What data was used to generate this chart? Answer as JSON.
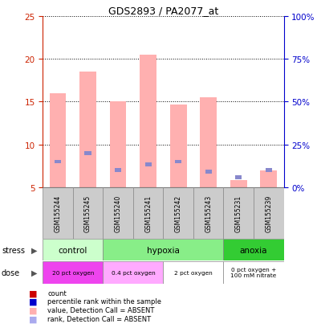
{
  "title": "GDS2893 / PA2077_at",
  "samples": [
    "GSM155244",
    "GSM155245",
    "GSM155240",
    "GSM155241",
    "GSM155242",
    "GSM155243",
    "GSM155231",
    "GSM155239"
  ],
  "pink_bar_heights": [
    16.0,
    18.5,
    15.0,
    20.5,
    14.7,
    15.5,
    5.8,
    7.0
  ],
  "blue_bar_heights": [
    8.0,
    9.0,
    7.0,
    7.7,
    8.0,
    6.8,
    6.2,
    7.0
  ],
  "pink_bar_color": "#FFB0B0",
  "blue_bar_color": "#8888CC",
  "bar_width": 0.55,
  "blue_bar_width": 0.22,
  "blue_bar_thickness": 0.45,
  "ylim_left": [
    5,
    25
  ],
  "ylim_right": [
    0,
    100
  ],
  "yticks_left": [
    5,
    10,
    15,
    20,
    25
  ],
  "yticks_right": [
    0,
    25,
    50,
    75,
    100
  ],
  "ytick_labels_right": [
    "0%",
    "25%",
    "50%",
    "75%",
    "100%"
  ],
  "stress_groups": [
    {
      "label": "control",
      "start": 0,
      "end": 2,
      "color": "#CCFFCC"
    },
    {
      "label": "hypoxia",
      "start": 2,
      "end": 6,
      "color": "#88EE88"
    },
    {
      "label": "anoxia",
      "start": 6,
      "end": 8,
      "color": "#33CC33"
    }
  ],
  "dose_groups": [
    {
      "label": "20 pct oxygen",
      "start": 0,
      "end": 2,
      "color": "#EE44EE"
    },
    {
      "label": "0.4 pct oxygen",
      "start": 2,
      "end": 4,
      "color": "#FFAAFF"
    },
    {
      "label": "2 pct oxygen",
      "start": 4,
      "end": 6,
      "color": "#FFFFFF"
    },
    {
      "label": "0 pct oxygen +\n100 mM nitrate",
      "start": 6,
      "end": 8,
      "color": "#FFFFFF"
    }
  ],
  "left_axis_color": "#CC2200",
  "right_axis_color": "#0000CC",
  "background_color": "#FFFFFF",
  "sample_box_color": "#CCCCCC",
  "legend_colors": [
    "#CC0000",
    "#0000CC",
    "#FFB0B0",
    "#AAAAEE"
  ],
  "legend_labels": [
    "count",
    "percentile rank within the sample",
    "value, Detection Call = ABSENT",
    "rank, Detection Call = ABSENT"
  ]
}
